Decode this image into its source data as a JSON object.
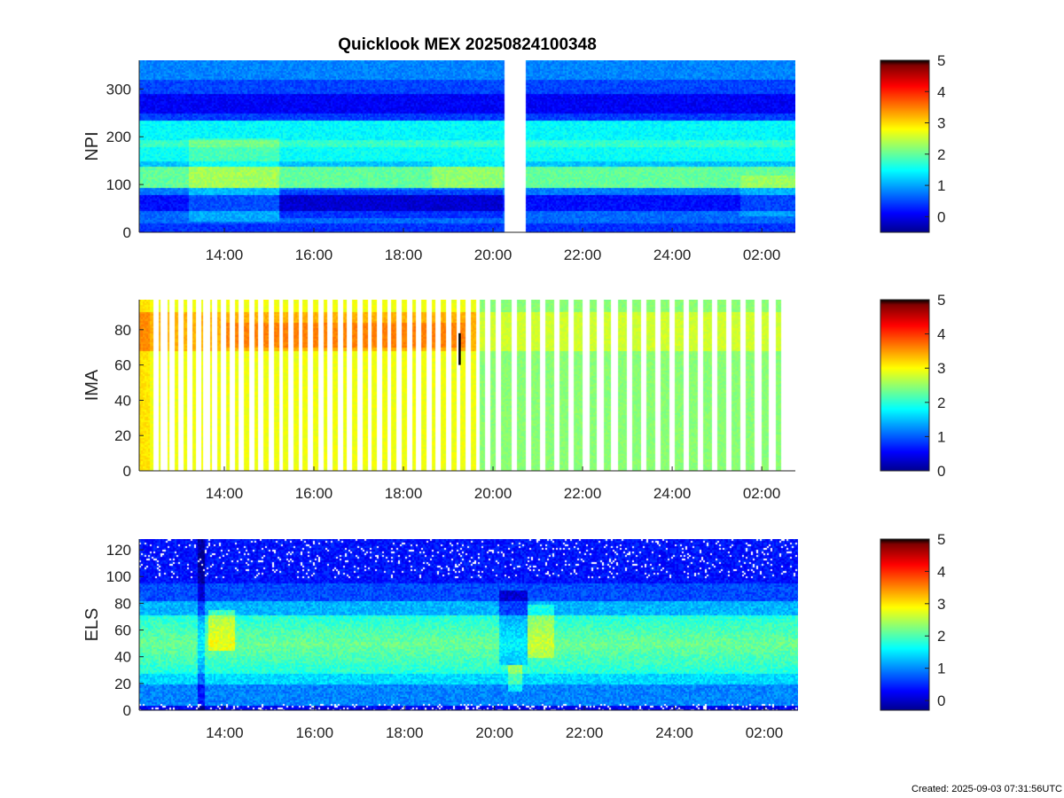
{
  "title": "Quicklook MEX 20250824100348",
  "created": "Created: 2025-09-03 07:31:56UTC",
  "chart_data": [
    {
      "type": "heatmap",
      "ylabel": "NPI",
      "ylim": [
        0,
        360
      ],
      "yticks": [
        0,
        100,
        200,
        300
      ],
      "xlim_hours": [
        12.1,
        26.75
      ],
      "xticks": [
        {
          "hour": 14,
          "label": "14:00"
        },
        {
          "hour": 16,
          "label": "16:00"
        },
        {
          "hour": 18,
          "label": "18:00"
        },
        {
          "hour": 20,
          "label": "20:00"
        },
        {
          "hour": 22,
          "label": "22:00"
        },
        {
          "hour": 24,
          "label": "24:00"
        },
        {
          "hour": 26,
          "label": "02:00"
        }
      ],
      "data_gaps_hours": [
        [
          20.25,
          20.7
        ]
      ],
      "clim": [
        -0.5,
        5
      ],
      "colorbar_ticks": [
        0,
        1,
        2,
        3,
        4,
        5
      ]
    },
    {
      "type": "heatmap",
      "ylabel": "IMA",
      "ylim": [
        0,
        97
      ],
      "yticks": [
        0,
        20,
        40,
        60,
        80
      ],
      "xlim_hours": [
        12.1,
        26.75
      ],
      "xticks": [
        {
          "hour": 14,
          "label": "14:00"
        },
        {
          "hour": 16,
          "label": "16:00"
        },
        {
          "hour": 18,
          "label": "18:00"
        },
        {
          "hour": 20,
          "label": "20:00"
        },
        {
          "hour": 22,
          "label": "22:00"
        },
        {
          "hour": 24,
          "label": "24:00"
        },
        {
          "hour": 26,
          "label": "02:00"
        }
      ],
      "clim": [
        0,
        5
      ],
      "colorbar_ticks": [
        0,
        1,
        2,
        3,
        4,
        5
      ]
    },
    {
      "type": "heatmap",
      "ylabel": "ELS",
      "ylim": [
        0,
        128
      ],
      "yticks": [
        0,
        20,
        40,
        60,
        80,
        100,
        120
      ],
      "xlim_hours": [
        12.1,
        26.75
      ],
      "xticks": [
        {
          "hour": 14,
          "label": "14:00"
        },
        {
          "hour": 16,
          "label": "16:00"
        },
        {
          "hour": 18,
          "label": "18:00"
        },
        {
          "hour": 20,
          "label": "20:00"
        },
        {
          "hour": 22,
          "label": "22:00"
        },
        {
          "hour": 24,
          "label": "24:00"
        },
        {
          "hour": 26,
          "label": "02:00"
        }
      ],
      "clim": [
        -0.3,
        5
      ],
      "colorbar_ticks": [
        0,
        1,
        2,
        3,
        4,
        5
      ]
    }
  ]
}
